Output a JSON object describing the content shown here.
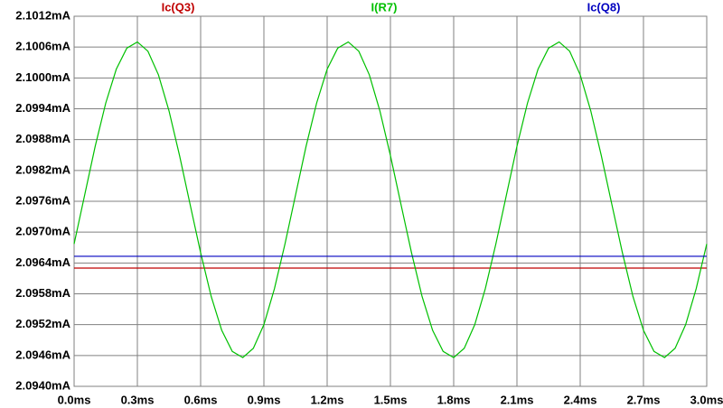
{
  "chart_data": {
    "type": "line",
    "x": [
      0,
      0.05,
      0.1,
      0.15,
      0.2,
      0.25,
      0.3,
      0.35,
      0.4,
      0.45,
      0.5,
      0.55,
      0.6,
      0.65,
      0.7,
      0.75,
      0.8,
      0.85,
      0.9,
      0.95,
      1.0,
      1.05,
      1.1,
      1.15,
      1.2,
      1.25,
      1.3,
      1.35,
      1.4,
      1.45,
      1.5,
      1.55,
      1.6,
      1.65,
      1.7,
      1.75,
      1.8,
      1.85,
      1.9,
      1.95,
      2.0,
      2.05,
      2.1,
      2.15,
      2.2,
      2.25,
      2.3,
      2.35,
      2.4,
      2.45,
      2.5,
      2.55,
      2.6,
      2.65,
      2.7,
      2.75,
      2.8,
      2.85,
      2.9,
      2.95,
      3.0
    ],
    "series": [
      {
        "name": "Ic(Q3)",
        "color": "#c00000",
        "values": [
          2.0963,
          2.0963,
          2.0963,
          2.0963,
          2.0963,
          2.0963,
          2.0963,
          2.0963,
          2.0963,
          2.0963,
          2.0963,
          2.0963,
          2.0963,
          2.0963,
          2.0963,
          2.0963,
          2.0963,
          2.0963,
          2.0963,
          2.0963,
          2.0963,
          2.0963,
          2.0963,
          2.0963,
          2.0963,
          2.0963,
          2.0963,
          2.0963,
          2.0963,
          2.0963,
          2.0963,
          2.0963,
          2.0963,
          2.0963,
          2.0963,
          2.0963,
          2.0963,
          2.0963,
          2.0963,
          2.0963,
          2.0963,
          2.0963,
          2.0963,
          2.0963,
          2.0963,
          2.0963,
          2.0963,
          2.0963,
          2.0963,
          2.0963,
          2.0963,
          2.0963,
          2.0963,
          2.0963,
          2.0963,
          2.0963,
          2.0963,
          2.0963,
          2.0963,
          2.0963,
          2.0963
        ]
      },
      {
        "name": "I(R7)",
        "color": "#00c000",
        "values": [
          2.09677,
          2.09772,
          2.09867,
          2.09951,
          2.10017,
          2.10058,
          2.1007,
          2.10052,
          2.10006,
          2.09936,
          2.09849,
          2.09754,
          2.0966,
          2.09575,
          2.09509,
          2.09468,
          2.09456,
          2.09474,
          2.0952,
          2.0959,
          2.09677,
          2.09772,
          2.09867,
          2.09951,
          2.10017,
          2.10058,
          2.1007,
          2.10052,
          2.10006,
          2.09936,
          2.09849,
          2.09754,
          2.0966,
          2.09575,
          2.09509,
          2.09468,
          2.09456,
          2.09474,
          2.0952,
          2.0959,
          2.09677,
          2.09772,
          2.09867,
          2.09951,
          2.10017,
          2.10058,
          2.1007,
          2.10052,
          2.10006,
          2.09936,
          2.09849,
          2.09754,
          2.0966,
          2.09575,
          2.09509,
          2.09468,
          2.09456,
          2.09474,
          2.0952,
          2.0959,
          2.09677
        ]
      },
      {
        "name": "Ic(Q8)",
        "color": "#0000c0",
        "values": [
          2.09653,
          2.09653,
          2.09653,
          2.09653,
          2.09653,
          2.09653,
          2.09653,
          2.09653,
          2.09653,
          2.09653,
          2.09653,
          2.09653,
          2.09653,
          2.09653,
          2.09653,
          2.09653,
          2.09653,
          2.09653,
          2.09653,
          2.09653,
          2.09653,
          2.09653,
          2.09653,
          2.09653,
          2.09653,
          2.09653,
          2.09653,
          2.09653,
          2.09653,
          2.09653,
          2.09653,
          2.09653,
          2.09653,
          2.09653,
          2.09653,
          2.09653,
          2.09653,
          2.09653,
          2.09653,
          2.09653,
          2.09653,
          2.09653,
          2.09653,
          2.09653,
          2.09653,
          2.09653,
          2.09653,
          2.09653,
          2.09653,
          2.09653,
          2.09653,
          2.09653,
          2.09653,
          2.09653,
          2.09653,
          2.09653,
          2.09653,
          2.09653,
          2.09653,
          2.09653,
          2.09653
        ]
      }
    ],
    "xlim": [
      0,
      3.0
    ],
    "xticks": [
      {
        "value": 0,
        "label": "0.0ms"
      },
      {
        "value": 0.3,
        "label": "0.3ms"
      },
      {
        "value": 0.6,
        "label": "0.6ms"
      },
      {
        "value": 0.9,
        "label": "0.9ms"
      },
      {
        "value": 1.2,
        "label": "1.2ms"
      },
      {
        "value": 1.5,
        "label": "1.5ms"
      },
      {
        "value": 1.8,
        "label": "1.8ms"
      },
      {
        "value": 2.1,
        "label": "2.1ms"
      },
      {
        "value": 2.4,
        "label": "2.4ms"
      },
      {
        "value": 2.7,
        "label": "2.7ms"
      },
      {
        "value": 3.0,
        "label": "3.0ms"
      }
    ],
    "ylim": [
      2.094,
      2.1012
    ],
    "yticks": [
      {
        "value": 2.1012,
        "label": "2.1012mA"
      },
      {
        "value": 2.1006,
        "label": "2.1006mA"
      },
      {
        "value": 2.1,
        "label": "2.1000mA"
      },
      {
        "value": 2.0994,
        "label": "2.0994mA"
      },
      {
        "value": 2.0988,
        "label": "2.0988mA"
      },
      {
        "value": 2.0982,
        "label": "2.0982mA"
      },
      {
        "value": 2.0976,
        "label": "2.0976mA"
      },
      {
        "value": 2.097,
        "label": "2.0970mA"
      },
      {
        "value": 2.0964,
        "label": "2.0964mA"
      },
      {
        "value": 2.0958,
        "label": "2.0958mA"
      },
      {
        "value": 2.0952,
        "label": "2.0952mA"
      },
      {
        "value": 2.0946,
        "label": "2.0946mA"
      },
      {
        "value": 2.094,
        "label": "2.0940mA"
      }
    ],
    "grid": true
  }
}
